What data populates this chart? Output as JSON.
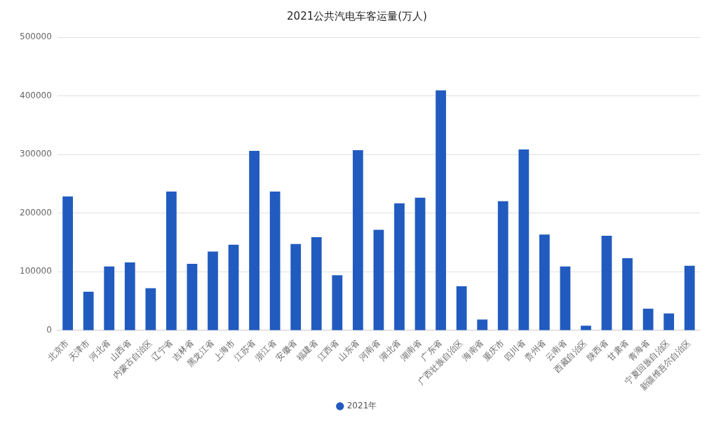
{
  "chart_data": {
    "type": "bar",
    "title": "2021公共汽电车客运量(万人)",
    "categories": [
      "北京市",
      "天津市",
      "河北省",
      "山西省",
      "内蒙古自治区",
      "辽宁省",
      "吉林省",
      "黑龙江省",
      "上海市",
      "江苏省",
      "浙江省",
      "安徽省",
      "福建省",
      "江西省",
      "山东省",
      "河南省",
      "湖北省",
      "湖南省",
      "广东省",
      "广西壮族自治区",
      "海南省",
      "重庆市",
      "四川省",
      "贵州省",
      "云南省",
      "西藏自治区",
      "陕西省",
      "甘肃省",
      "青海省",
      "宁夏回族自治区",
      "新疆维吾尔自治区"
    ],
    "series": [
      {
        "name": "2021年",
        "color": "#215bbf",
        "values": [
          228500,
          66100,
          109000,
          116000,
          72000,
          236700,
          113700,
          134600,
          146200,
          306300,
          236700,
          147300,
          158900,
          94000,
          307400,
          171700,
          216900,
          226200,
          409500,
          75400,
          18600,
          220400,
          308600,
          163600,
          109000,
          8100,
          161300,
          123000,
          37100,
          29000,
          110200
        ]
      }
    ],
    "ylim": [
      0,
      500000
    ],
    "yticks": [
      0,
      100000,
      200000,
      300000,
      400000,
      500000
    ],
    "grid": "y",
    "legend": "bottom"
  }
}
